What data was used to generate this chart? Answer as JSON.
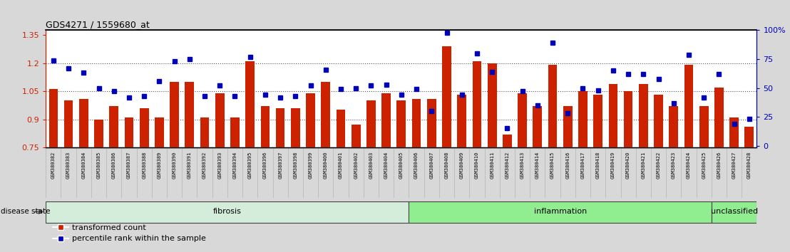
{
  "title": "GDS4271 / 1559680_at",
  "samples": [
    "GSM380382",
    "GSM380383",
    "GSM380384",
    "GSM380385",
    "GSM380386",
    "GSM380387",
    "GSM380388",
    "GSM380389",
    "GSM380390",
    "GSM380391",
    "GSM380392",
    "GSM380393",
    "GSM380394",
    "GSM380395",
    "GSM380396",
    "GSM380397",
    "GSM380398",
    "GSM380399",
    "GSM380400",
    "GSM380401",
    "GSM380402",
    "GSM380403",
    "GSM380404",
    "GSM380405",
    "GSM380406",
    "GSM380407",
    "GSM380408",
    "GSM380409",
    "GSM380410",
    "GSM380411",
    "GSM380412",
    "GSM380413",
    "GSM380414",
    "GSM380415",
    "GSM380416",
    "GSM380417",
    "GSM380418",
    "GSM380419",
    "GSM380420",
    "GSM380421",
    "GSM380422",
    "GSM380423",
    "GSM380424",
    "GSM380425",
    "GSM380426",
    "GSM380427",
    "GSM380428"
  ],
  "bar_values": [
    1.06,
    1.0,
    1.01,
    0.9,
    0.97,
    0.91,
    0.96,
    0.91,
    1.1,
    1.1,
    0.91,
    1.04,
    0.91,
    1.21,
    0.97,
    0.96,
    0.96,
    1.04,
    1.1,
    0.95,
    0.87,
    1.0,
    1.04,
    1.0,
    1.01,
    1.01,
    1.29,
    1.03,
    1.21,
    1.2,
    0.82,
    1.04,
    0.97,
    1.19,
    0.97,
    1.05,
    1.03,
    1.09,
    1.05,
    1.09,
    1.03,
    0.97,
    1.19,
    0.97,
    1.07,
    0.91,
    0.86
  ],
  "percentile_values": [
    74,
    67,
    63,
    50,
    47,
    42,
    43,
    56,
    73,
    75,
    43,
    52,
    43,
    77,
    44,
    42,
    43,
    52,
    66,
    49,
    50,
    52,
    53,
    44,
    49,
    30,
    98,
    44,
    80,
    64,
    15,
    47,
    35,
    89,
    28,
    50,
    48,
    65,
    62,
    62,
    58,
    37,
    79,
    42,
    62,
    19,
    23
  ],
  "disease_groups": [
    {
      "label": "fibrosis",
      "start": 0,
      "end": 23,
      "color": "#d4edda"
    },
    {
      "label": "inflammation",
      "start": 24,
      "end": 43,
      "color": "#90ee90"
    },
    {
      "label": "unclassified",
      "start": 44,
      "end": 46,
      "color": "#90ee90"
    }
  ],
  "bar_color": "#cc2200",
  "percentile_color": "#0000bb",
  "bar_bottom": 0.75,
  "ylim_left": [
    0.75,
    1.375
  ],
  "ylim_right": [
    -1.5,
    100
  ],
  "yticks_left": [
    0.75,
    0.9,
    1.05,
    1.2,
    1.35
  ],
  "yticks_right": [
    0,
    25,
    50,
    75,
    100
  ],
  "hlines": [
    0.9,
    1.05,
    1.2
  ],
  "background_color": "#d8d8d8",
  "plot_bg_color": "#ffffff",
  "xticklabel_bg_color": "#c8c8c8",
  "disease_state_label": "disease state"
}
